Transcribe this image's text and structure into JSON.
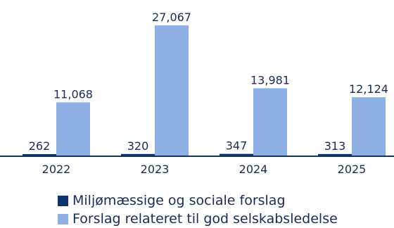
{
  "chart_data": {
    "type": "bar",
    "categories": [
      "2022",
      "2023",
      "2024",
      "2025"
    ],
    "series": [
      {
        "name": "Miljømæssige og sociale forslag",
        "values": [
          262,
          320,
          347,
          313
        ],
        "labels": [
          "262",
          "320",
          "347",
          "313"
        ],
        "color": "#0e3470"
      },
      {
        "name": "Forslag relateret til god selskabsledelse",
        "values": [
          11068,
          27067,
          13981,
          12124
        ],
        "labels": [
          "11,068",
          "27,067",
          "13,981",
          "12,124"
        ],
        "color": "#8fb0e4"
      }
    ],
    "ylim": [
      0,
      27067
    ],
    "grid": false,
    "legend_position": "bottom"
  }
}
